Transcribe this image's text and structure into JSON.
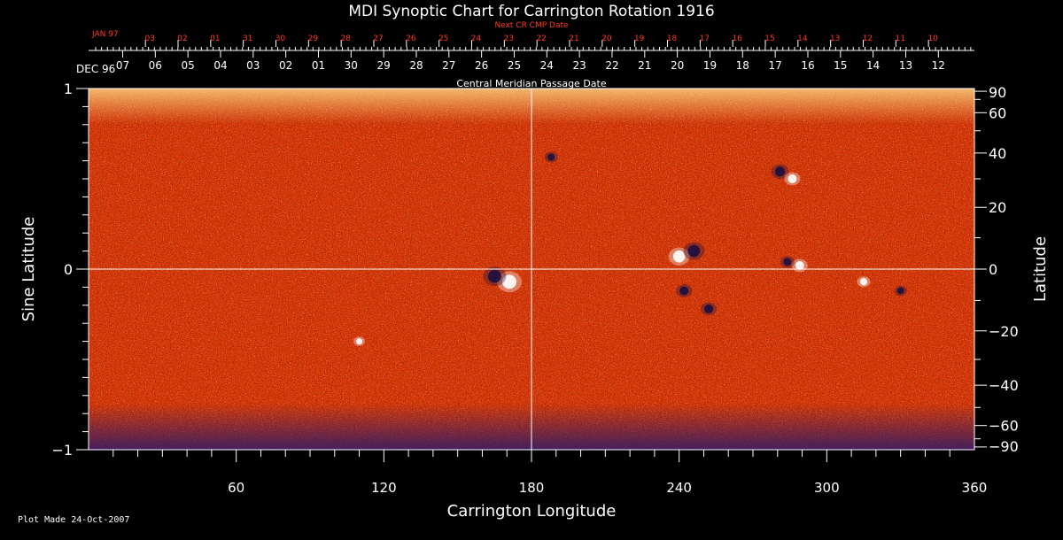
{
  "chart_data": {
    "type": "heatmap",
    "title": "MDI Synoptic Chart for Carrington Rotation 1916",
    "xlabel": "Carrington Longitude",
    "ylabel_left": "Sine Latitude",
    "ylabel_right": "Latitude",
    "xlim": [
      0,
      360
    ],
    "ylim": [
      -1,
      1
    ],
    "x_ticks": [
      60,
      120,
      180,
      240,
      300,
      360
    ],
    "y_ticks_left": [
      {
        "value": -1,
        "label": "−1"
      },
      {
        "value": 0,
        "label": "0"
      },
      {
        "value": 1,
        "label": "1"
      }
    ],
    "y_ticks_right": [
      {
        "lat": 90,
        "label": "90"
      },
      {
        "lat": 60,
        "label": "60"
      },
      {
        "lat": 40,
        "label": "40"
      },
      {
        "lat": 20,
        "label": "20"
      },
      {
        "lat": 0,
        "label": "0"
      },
      {
        "lat": -20,
        "label": "−20"
      },
      {
        "lat": -40,
        "label": "−40"
      },
      {
        "lat": -60,
        "label": "−60"
      },
      {
        "lat": -90,
        "label": "−90"
      }
    ],
    "reference_lines": {
      "longitude": 180,
      "sine_latitude": 0
    },
    "cmp_axis_label": "Central Meridian Passage Date",
    "cmp_month_label": "DEC 96",
    "cmp_dates": [
      "07",
      "06",
      "05",
      "04",
      "03",
      "02",
      "01",
      "30",
      "29",
      "28",
      "27",
      "26",
      "25",
      "24",
      "23",
      "22",
      "21",
      "20",
      "19",
      "18",
      "17",
      "16",
      "15",
      "14",
      "13",
      "12"
    ],
    "cmp_dates_first_lon": 13.85,
    "cmp_dates_step_lon": 13.26,
    "next_cr_label": "Next CR CMP Date",
    "next_cr_month_label": "JAN 97",
    "next_cr_dates": [
      "03",
      "02",
      "01",
      "31",
      "30",
      "29",
      "28",
      "27",
      "26",
      "25",
      "24",
      "23",
      "22",
      "21",
      "20",
      "19",
      "18",
      "17",
      "16",
      "15",
      "14",
      "13",
      "12",
      "11",
      "10"
    ],
    "next_cr_dates_first_lon": 23.1,
    "next_cr_dates_step_lon": 13.26,
    "colors": {
      "background": "#000000",
      "field_base": "#e83c0a",
      "positive_polarity": "#ffffff",
      "negative_polarity": "#1a1040",
      "next_cr_text": "#ff3b1f"
    },
    "active_regions": [
      {
        "lon": 171,
        "sinlat": -0.07,
        "polarity": "positive",
        "strength": 1.0
      },
      {
        "lon": 165,
        "sinlat": -0.04,
        "polarity": "negative",
        "strength": 0.9
      },
      {
        "lon": 240,
        "sinlat": 0.07,
        "polarity": "positive",
        "strength": 0.8
      },
      {
        "lon": 246,
        "sinlat": 0.1,
        "polarity": "negative",
        "strength": 0.8
      },
      {
        "lon": 281,
        "sinlat": 0.54,
        "polarity": "negative",
        "strength": 0.6
      },
      {
        "lon": 286,
        "sinlat": 0.5,
        "polarity": "positive",
        "strength": 0.5
      },
      {
        "lon": 289,
        "sinlat": 0.02,
        "polarity": "positive",
        "strength": 0.5
      },
      {
        "lon": 284,
        "sinlat": 0.04,
        "polarity": "negative",
        "strength": 0.4
      },
      {
        "lon": 252,
        "sinlat": -0.22,
        "polarity": "negative",
        "strength": 0.5
      },
      {
        "lon": 242,
        "sinlat": -0.12,
        "polarity": "negative",
        "strength": 0.5
      },
      {
        "lon": 315,
        "sinlat": -0.07,
        "polarity": "positive",
        "strength": 0.35
      },
      {
        "lon": 330,
        "sinlat": -0.12,
        "polarity": "negative",
        "strength": 0.3
      },
      {
        "lon": 188,
        "sinlat": 0.62,
        "polarity": "negative",
        "strength": 0.35
      },
      {
        "lon": 110,
        "sinlat": -0.4,
        "polarity": "positive",
        "strength": 0.25
      }
    ]
  },
  "footer": {
    "plot_made": "Plot Made 24-Oct-2007"
  }
}
